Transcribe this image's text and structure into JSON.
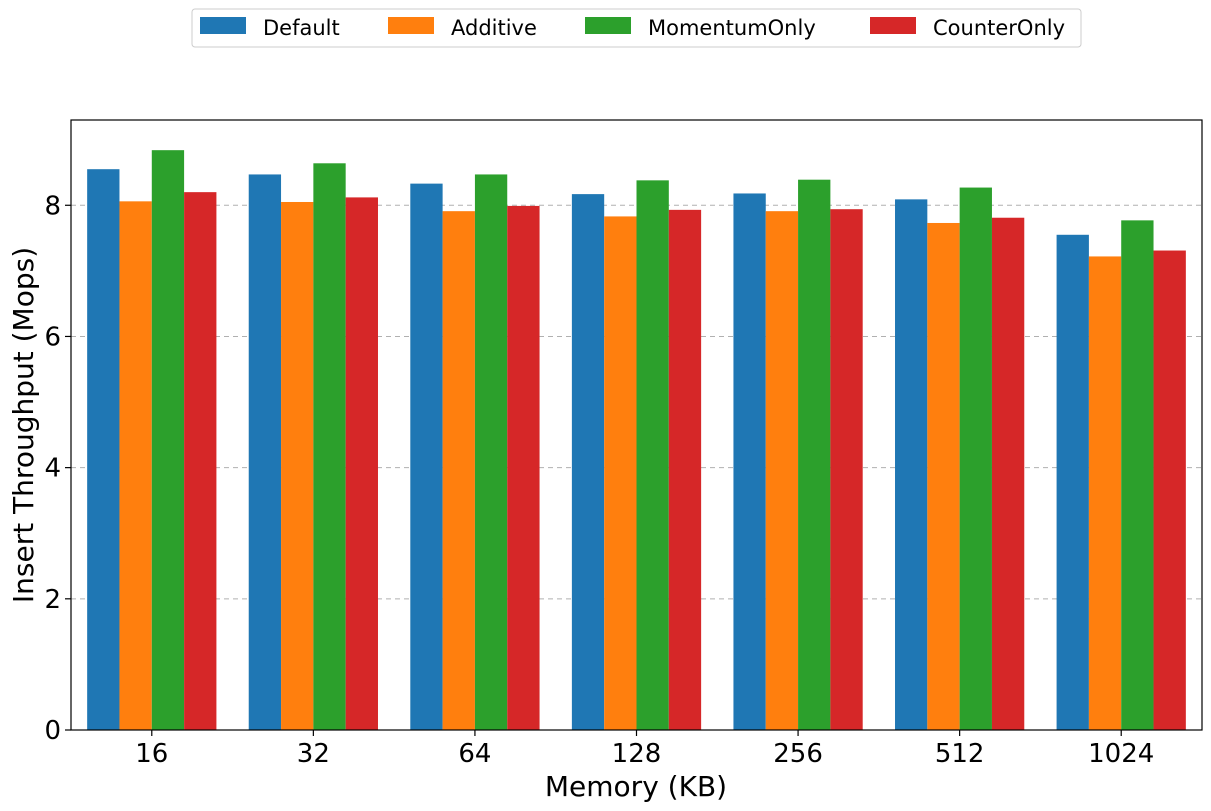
{
  "chart_data": {
    "type": "bar",
    "categories": [
      "16",
      "32",
      "64",
      "128",
      "256",
      "512",
      "1024"
    ],
    "series": [
      {
        "name": "Default",
        "color": "#1f77b4",
        "values": [
          8.55,
          8.47,
          8.33,
          8.17,
          8.18,
          8.09,
          7.55
        ]
      },
      {
        "name": "Additive",
        "color": "#ff7f0e",
        "values": [
          8.06,
          8.05,
          7.91,
          7.83,
          7.91,
          7.73,
          7.22
        ]
      },
      {
        "name": "MomentumOnly",
        "color": "#2ca02c",
        "values": [
          8.84,
          8.64,
          8.47,
          8.38,
          8.39,
          8.27,
          7.77
        ]
      },
      {
        "name": "CounterOnly",
        "color": "#d62728",
        "values": [
          8.2,
          8.12,
          7.99,
          7.93,
          7.94,
          7.81,
          7.31
        ]
      }
    ],
    "xlabel": "Memory (KB)",
    "ylabel": "Insert Throughput (Mops)",
    "ylim": [
      0,
      9.3
    ],
    "yticks": [
      "0",
      "2",
      "4",
      "6",
      "8"
    ],
    "grid": "y-dashed",
    "legend_position": "top-center"
  }
}
